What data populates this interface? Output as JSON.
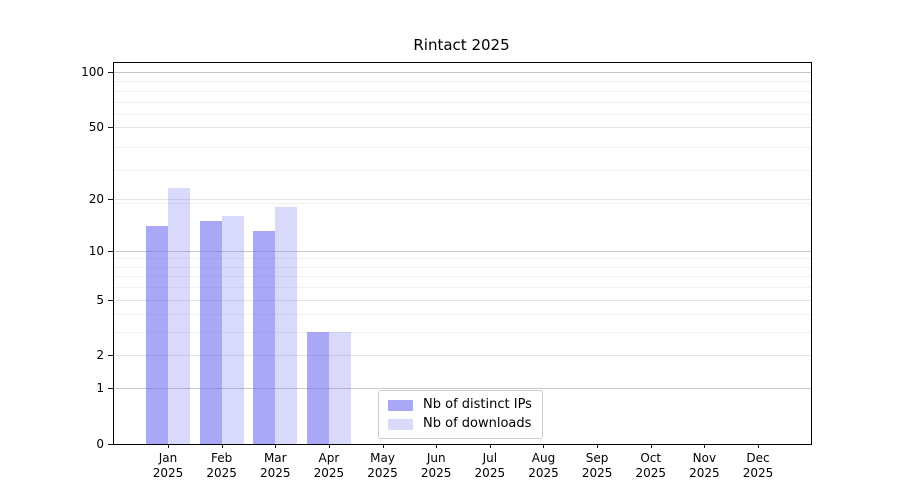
{
  "title": "Rintact 2025",
  "chart_data": {
    "type": "bar",
    "title": "Rintact 2025",
    "x_categories": [
      "Jan",
      "Feb",
      "Mar",
      "Apr",
      "May",
      "Jun",
      "Jul",
      "Aug",
      "Sep",
      "Oct",
      "Nov",
      "Dec"
    ],
    "x_year": "2025",
    "series": [
      {
        "name": "Nb of distinct IPs",
        "color": "#a8a8f6",
        "fill": "rgba(110,110,242,0.60)",
        "values": [
          14,
          15,
          13,
          3,
          0,
          0,
          0,
          0,
          0,
          0,
          0,
          0
        ]
      },
      {
        "name": "Nb of downloads",
        "color": "#d9d9fa",
        "fill": "rgba(110,110,242,0.26)",
        "values": [
          23,
          16,
          18,
          3,
          0,
          0,
          0,
          0,
          0,
          0,
          0,
          0
        ]
      }
    ],
    "y_axis": {
      "scale": "log10(1+value)",
      "tick_labels": [
        "0",
        "1",
        "2",
        "5",
        "10",
        "20",
        "50",
        "100"
      ],
      "tick_values": [
        0,
        1,
        2,
        5,
        10,
        20,
        50,
        100
      ],
      "strong_grid_values": [
        1,
        10,
        100
      ],
      "soft_grid_values": [
        2,
        5,
        20,
        50
      ],
      "minor_grid_values": [
        3,
        4,
        6,
        7,
        8,
        9,
        19,
        29,
        39,
        59,
        69,
        79,
        89
      ],
      "ylim": [
        0,
        112
      ]
    },
    "grid": "horizontal",
    "legend": {
      "items": [
        "Nb of distinct IPs",
        "Nb of downloads"
      ],
      "position": "inside-bottom-center"
    },
    "grid_colors": {
      "strong": "#c8c8c8",
      "soft": "#e4e4e4",
      "minor": "#f1f1f1"
    }
  }
}
